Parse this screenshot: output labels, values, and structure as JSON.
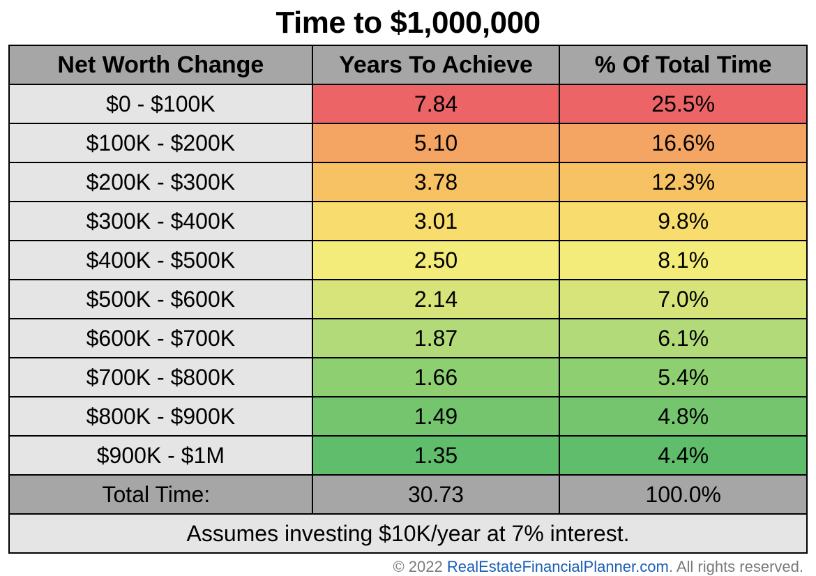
{
  "type": "table",
  "title": "Time to $1,000,000",
  "title_fontsize": 44,
  "header_fontsize": 34,
  "cell_fontsize": 32,
  "note_fontsize": 32,
  "credit_fontsize": 22,
  "columns": [
    "Net Worth Change",
    "Years To Achieve",
    "% Of Total Time"
  ],
  "column_widths_pct": [
    38,
    31,
    31
  ],
  "header_bg": "#a6a6a6",
  "header_text_color": "#000000",
  "row_label_bg": "#e5e5e5",
  "total_row_bg": "#a6a6a6",
  "note_row_bg": "#e5e5e5",
  "border_color": "#000000",
  "text_color": "#000000",
  "background_color": "#ffffff",
  "rows": [
    {
      "range": "$0 - $100K",
      "years": "7.84",
      "pct": "25.5%",
      "heat": "#ec6466"
    },
    {
      "range": "$100K - $200K",
      "years": "5.10",
      "pct": "16.6%",
      "heat": "#f4a463"
    },
    {
      "range": "$200K - $300K",
      "years": "3.78",
      "pct": "12.3%",
      "heat": "#f7c264"
    },
    {
      "range": "$300K - $400K",
      "years": "3.01",
      "pct": "9.8%",
      "heat": "#f8dd6e"
    },
    {
      "range": "$400K - $500K",
      "years": "2.50",
      "pct": "8.1%",
      "heat": "#f4ec7a"
    },
    {
      "range": "$500K - $600K",
      "years": "2.14",
      "pct": "7.0%",
      "heat": "#d6e47a"
    },
    {
      "range": "$600K - $700K",
      "years": "1.87",
      "pct": "6.1%",
      "heat": "#b3da79"
    },
    {
      "range": "$700K - $800K",
      "years": "1.66",
      "pct": "5.4%",
      "heat": "#8ecf72"
    },
    {
      "range": "$800K - $900K",
      "years": "1.49",
      "pct": "4.8%",
      "heat": "#74c56e"
    },
    {
      "range": "$900K - $1M",
      "years": "1.35",
      "pct": "4.4%",
      "heat": "#5fbd6b"
    }
  ],
  "total": {
    "label": "Total Time:",
    "years": "30.73",
    "pct": "100.0%"
  },
  "note": "Assumes investing $10K/year at 7% interest.",
  "credit": {
    "prefix": "© 2022 ",
    "link": "RealEstateFinancialPlanner.com",
    "suffix": ". All rights reserved."
  }
}
